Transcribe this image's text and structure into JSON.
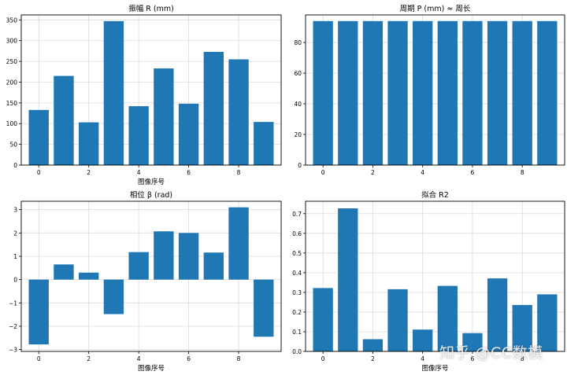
{
  "colors": {
    "bar": "#1f77b4",
    "grid": "#dcdcdc",
    "axis": "#000000"
  },
  "chart_data": [
    {
      "type": "bar",
      "title": "振幅 R (mm)",
      "xlabel": "图像序号",
      "ylabel": "",
      "categories": [
        0,
        1,
        2,
        3,
        4,
        5,
        6,
        7,
        8,
        9
      ],
      "values": [
        133,
        215,
        103,
        347,
        142,
        233,
        148,
        273,
        255,
        104
      ],
      "ylim": [
        0,
        362
      ],
      "yticks": [
        0,
        50,
        100,
        150,
        200,
        250,
        300,
        350
      ],
      "ytick_labels": [
        "0",
        "50",
        "100",
        "150",
        "200",
        "250",
        "300",
        "350"
      ],
      "xticks": [
        0,
        2,
        4,
        6,
        8
      ],
      "xtick_labels": [
        "0",
        "2",
        "4",
        "6",
        "8"
      ],
      "grid": true
    },
    {
      "type": "bar",
      "title": "周期 P (mm) ≈ 周长",
      "xlabel": "",
      "ylabel": "",
      "categories": [
        0,
        1,
        2,
        3,
        4,
        5,
        6,
        7,
        8,
        9
      ],
      "values": [
        94,
        94,
        94,
        94,
        94,
        94,
        94,
        94,
        94,
        94
      ],
      "ylim": [
        0,
        98
      ],
      "yticks": [
        0,
        20,
        40,
        60,
        80
      ],
      "ytick_labels": [
        "0",
        "20",
        "40",
        "60",
        "80"
      ],
      "xticks": [
        0,
        2,
        4,
        6,
        8
      ],
      "xtick_labels": [
        "0",
        "2",
        "4",
        "6",
        "8"
      ],
      "grid": true
    },
    {
      "type": "bar",
      "title": "相位 β (rad)",
      "xlabel": "图像序号",
      "ylabel": "",
      "categories": [
        0,
        1,
        2,
        3,
        4,
        5,
        6,
        7,
        8,
        9
      ],
      "values": [
        -2.78,
        0.65,
        0.3,
        -1.48,
        1.18,
        2.07,
        2.0,
        1.16,
        3.1,
        -2.45
      ],
      "ylim": [
        -3.08,
        3.36
      ],
      "yticks": [
        -3,
        -2,
        -1,
        0,
        1,
        2,
        3
      ],
      "ytick_labels": [
        "−3",
        "−2",
        "−1",
        "0",
        "1",
        "2",
        "3"
      ],
      "xticks": [
        0,
        2,
        4,
        6,
        8
      ],
      "xtick_labels": [
        "0",
        "2",
        "4",
        "6",
        "8"
      ],
      "grid": true
    },
    {
      "type": "bar",
      "title": "拟合 R2",
      "xlabel": "图像序号",
      "ylabel": "",
      "categories": [
        0,
        1,
        2,
        3,
        4,
        5,
        6,
        7,
        8,
        9
      ],
      "values": [
        0.322,
        0.727,
        0.062,
        0.316,
        0.111,
        0.333,
        0.093,
        0.371,
        0.236,
        0.29
      ],
      "ylim": [
        0,
        0.763
      ],
      "yticks": [
        0,
        0.1,
        0.2,
        0.3,
        0.4,
        0.5,
        0.6,
        0.7
      ],
      "ytick_labels": [
        "0.0",
        "0.1",
        "0.2",
        "0.3",
        "0.4",
        "0.5",
        "0.6",
        "0.7"
      ],
      "xticks": [
        0,
        2,
        4,
        6,
        8
      ],
      "xtick_labels": [
        "0",
        "2",
        "4",
        "6",
        "8"
      ],
      "grid": true
    }
  ],
  "watermark": "知乎 @CC数模"
}
